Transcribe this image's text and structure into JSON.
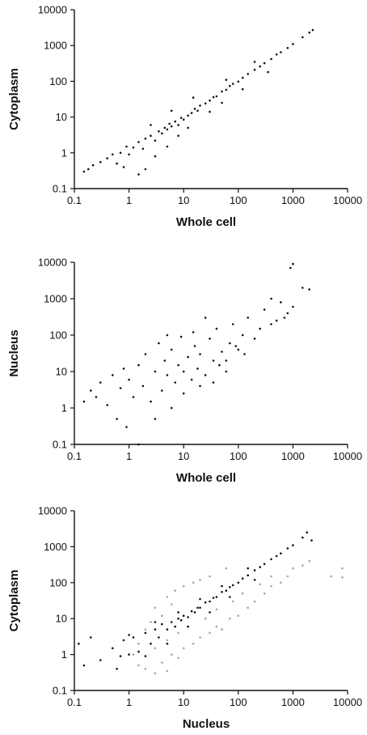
{
  "chart_data": [
    {
      "type": "scatter",
      "x_scale": "log",
      "y_scale": "log",
      "xlabel": "Whole cell",
      "ylabel": "Cytoplasm",
      "xlim": [
        0.1,
        10000
      ],
      "ylim": [
        0.1,
        10000
      ],
      "x_tick_labels": [
        "0.1",
        "1",
        "10",
        "100",
        "1000",
        "10000"
      ],
      "y_tick_labels": [
        "0.1",
        "1",
        "10",
        "100",
        "1000",
        "10000"
      ],
      "grid": false,
      "series": [
        {
          "color": "#111111",
          "points": [
            [
              0.15,
              0.3
            ],
            [
              0.18,
              0.35
            ],
            [
              0.22,
              0.45
            ],
            [
              0.3,
              0.55
            ],
            [
              0.4,
              0.7
            ],
            [
              0.5,
              0.9
            ],
            [
              0.6,
              0.5
            ],
            [
              0.7,
              1.0
            ],
            [
              0.8,
              0.4
            ],
            [
              0.9,
              1.5
            ],
            [
              1.0,
              0.9
            ],
            [
              1.2,
              1.4
            ],
            [
              1.5,
              2.0
            ],
            [
              1.8,
              1.3
            ],
            [
              2.0,
              2.5
            ],
            [
              2.5,
              3.0
            ],
            [
              3.0,
              2.2
            ],
            [
              3.5,
              4.0
            ],
            [
              4.0,
              3.5
            ],
            [
              4.5,
              5.0
            ],
            [
              5.0,
              4.5
            ],
            [
              5.5,
              6.5
            ],
            [
              6.0,
              5.5
            ],
            [
              7.0,
              7.5
            ],
            [
              8.0,
              6.0
            ],
            [
              9.0,
              9.5
            ],
            [
              10,
              8.5
            ],
            [
              12,
              11
            ],
            [
              14,
              13
            ],
            [
              16,
              17
            ],
            [
              18,
              15
            ],
            [
              20,
              21
            ],
            [
              25,
              24
            ],
            [
              30,
              29
            ],
            [
              35,
              36
            ],
            [
              40,
              38
            ],
            [
              50,
              52
            ],
            [
              60,
              58
            ],
            [
              70,
              74
            ],
            [
              80,
              85
            ],
            [
              100,
              98
            ],
            [
              120,
              125
            ],
            [
              150,
              160
            ],
            [
              200,
              210
            ],
            [
              250,
              260
            ],
            [
              300,
              320
            ],
            [
              400,
              420
            ],
            [
              500,
              560
            ],
            [
              600,
              650
            ],
            [
              800,
              850
            ],
            [
              1000,
              1100
            ],
            [
              1500,
              1700
            ],
            [
              2000,
              2300
            ],
            [
              2300,
              2700
            ],
            [
              1.5,
              0.25
            ],
            [
              2.0,
              0.35
            ],
            [
              3.0,
              0.8
            ],
            [
              2.5,
              6.0
            ],
            [
              5.0,
              1.5
            ],
            [
              8.0,
              3.0
            ],
            [
              12,
              5.0
            ],
            [
              6.0,
              15
            ],
            [
              15,
              35
            ],
            [
              30,
              14
            ],
            [
              50,
              25
            ],
            [
              60,
              110
            ],
            [
              120,
              60
            ],
            [
              200,
              350
            ],
            [
              350,
              180
            ]
          ]
        }
      ]
    },
    {
      "type": "scatter",
      "x_scale": "log",
      "y_scale": "log",
      "xlabel": "Whole cell",
      "ylabel": "Nucleus",
      "xlim": [
        0.1,
        10000
      ],
      "ylim": [
        0.1,
        10000
      ],
      "x_tick_labels": [
        "0.1",
        "1",
        "10",
        "100",
        "1000",
        "10000"
      ],
      "y_tick_labels": [
        "0.1",
        "1",
        "10",
        "100",
        "1000",
        "10000"
      ],
      "grid": false,
      "series": [
        {
          "color": "#111111",
          "points": [
            [
              0.15,
              1.5
            ],
            [
              0.2,
              3.0
            ],
            [
              0.25,
              2.0
            ],
            [
              0.3,
              5.0
            ],
            [
              0.4,
              1.2
            ],
            [
              0.5,
              8.0
            ],
            [
              0.6,
              0.5
            ],
            [
              0.7,
              3.5
            ],
            [
              0.8,
              12
            ],
            [
              0.9,
              0.3
            ],
            [
              1.0,
              6.0
            ],
            [
              1.2,
              2.0
            ],
            [
              1.5,
              15
            ],
            [
              1.5,
              0.1
            ],
            [
              1.8,
              4.0
            ],
            [
              2.0,
              30
            ],
            [
              2.5,
              1.5
            ],
            [
              3.0,
              10
            ],
            [
              3.5,
              60
            ],
            [
              4.0,
              3.0
            ],
            [
              4.5,
              20
            ],
            [
              5.0,
              8.0
            ],
            [
              6.0,
              40
            ],
            [
              7.0,
              5.0
            ],
            [
              8.0,
              15
            ],
            [
              9.0,
              90
            ],
            [
              10,
              10
            ],
            [
              12,
              25
            ],
            [
              14,
              6.0
            ],
            [
              16,
              50
            ],
            [
              18,
              12
            ],
            [
              20,
              30
            ],
            [
              25,
              8.0
            ],
            [
              30,
              80
            ],
            [
              35,
              20
            ],
            [
              40,
              150
            ],
            [
              50,
              35
            ],
            [
              60,
              10
            ],
            [
              70,
              60
            ],
            [
              80,
              200
            ],
            [
              100,
              40
            ],
            [
              120,
              100
            ],
            [
              150,
              300
            ],
            [
              200,
              80
            ],
            [
              250,
              150
            ],
            [
              300,
              500
            ],
            [
              400,
              200
            ],
            [
              500,
              250
            ],
            [
              600,
              800
            ],
            [
              800,
              400
            ],
            [
              1000,
              600
            ],
            [
              1500,
              2000
            ],
            [
              2000,
              1800
            ],
            [
              900,
              7000
            ],
            [
              1000,
              9000
            ],
            [
              700,
              300
            ],
            [
              400,
              1000
            ],
            [
              3.0,
              0.5
            ],
            [
              6.0,
              1.0
            ],
            [
              10,
              2.5
            ],
            [
              20,
              4.0
            ],
            [
              5.0,
              100
            ],
            [
              15,
              120
            ],
            [
              25,
              300
            ],
            [
              45,
              15
            ],
            [
              90,
              50
            ],
            [
              130,
              30
            ],
            [
              35,
              5.0
            ],
            [
              60,
              20
            ]
          ]
        }
      ]
    },
    {
      "type": "scatter",
      "x_scale": "log",
      "y_scale": "log",
      "xlabel": "Nucleus",
      "ylabel": "Cytoplasm",
      "xlim": [
        0.1,
        10000
      ],
      "ylim": [
        0.1,
        10000
      ],
      "x_tick_labels": [
        "0.1",
        "1",
        "10",
        "100",
        "1000",
        "10000"
      ],
      "y_tick_labels": [
        "0.1",
        "1",
        "10",
        "100",
        "1000",
        "10000"
      ],
      "grid": false,
      "series": [
        {
          "color": "#a6a6a6",
          "points": [
            [
              1.5,
              0.5
            ],
            [
              2.0,
              0.4
            ],
            [
              3.0,
              0.3
            ],
            [
              4.0,
              0.6
            ],
            [
              5.0,
              0.35
            ],
            [
              6.0,
              1.0
            ],
            [
              8.0,
              0.8
            ],
            [
              10,
              1.5
            ],
            [
              15,
              2.0
            ],
            [
              20,
              3.0
            ],
            [
              30,
              4.0
            ],
            [
              40,
              6.0
            ],
            [
              50,
              5.0
            ],
            [
              70,
              10
            ],
            [
              100,
              12
            ],
            [
              150,
              20
            ],
            [
              200,
              30
            ],
            [
              300,
              50
            ],
            [
              400,
              80
            ],
            [
              600,
              100
            ],
            [
              800,
              150
            ],
            [
              1000,
              250
            ],
            [
              1500,
              300
            ],
            [
              2000,
              400
            ],
            [
              5000,
              150
            ],
            [
              8000,
              250
            ],
            [
              8000,
              140
            ],
            [
              3.0,
              20
            ],
            [
              5.0,
              40
            ],
            [
              7.0,
              60
            ],
            [
              10,
              80
            ],
            [
              15,
              100
            ],
            [
              20,
              120
            ],
            [
              30,
              150
            ],
            [
              60,
              250
            ],
            [
              2.0,
              5.0
            ],
            [
              2.5,
              8.0
            ],
            [
              4.0,
              12
            ],
            [
              6.0,
              25
            ],
            [
              1.2,
              1.0
            ],
            [
              1.5,
              2.0
            ],
            [
              3.0,
              1.5
            ],
            [
              5.0,
              2.5
            ],
            [
              8.0,
              4.0
            ],
            [
              12,
              6.0
            ],
            [
              25,
              10
            ],
            [
              40,
              18
            ],
            [
              80,
              30
            ],
            [
              120,
              50
            ],
            [
              250,
              90
            ],
            [
              400,
              150
            ]
          ]
        },
        {
          "color": "#111111",
          "points": [
            [
              0.12,
              2.0
            ],
            [
              0.2,
              3.0
            ],
            [
              0.3,
              0.7
            ],
            [
              0.5,
              1.5
            ],
            [
              0.7,
              0.9
            ],
            [
              0.8,
              2.5
            ],
            [
              1.0,
              1.0
            ],
            [
              1.2,
              3.0
            ],
            [
              1.5,
              1.2
            ],
            [
              2.0,
              4.0
            ],
            [
              2.5,
              2.0
            ],
            [
              3.0,
              5.0
            ],
            [
              3.5,
              3.0
            ],
            [
              4.0,
              7.0
            ],
            [
              5.0,
              5.0
            ],
            [
              6.0,
              8.0
            ],
            [
              7.0,
              6.0
            ],
            [
              8.0,
              10
            ],
            [
              9.0,
              9.0
            ],
            [
              10,
              12
            ],
            [
              12,
              11
            ],
            [
              14,
              16
            ],
            [
              16,
              15
            ],
            [
              18,
              20
            ],
            [
              20,
              20
            ],
            [
              25,
              28
            ],
            [
              30,
              30
            ],
            [
              35,
              38
            ],
            [
              40,
              40
            ],
            [
              50,
              55
            ],
            [
              60,
              60
            ],
            [
              70,
              75
            ],
            [
              80,
              85
            ],
            [
              100,
              100
            ],
            [
              120,
              130
            ],
            [
              150,
              160
            ],
            [
              200,
              220
            ],
            [
              250,
              270
            ],
            [
              300,
              330
            ],
            [
              400,
              450
            ],
            [
              500,
              550
            ],
            [
              600,
              650
            ],
            [
              800,
              900
            ],
            [
              1000,
              1100
            ],
            [
              1500,
              1800
            ],
            [
              1800,
              2500
            ],
            [
              2200,
              1500
            ],
            [
              0.15,
              0.5
            ],
            [
              0.6,
              0.4
            ],
            [
              1.0,
              3.5
            ],
            [
              2.0,
              0.9
            ],
            [
              3.0,
              8.0
            ],
            [
              5.0,
              2.0
            ],
            [
              8.0,
              15
            ],
            [
              12,
              6.0
            ],
            [
              20,
              35
            ],
            [
              30,
              15
            ],
            [
              50,
              80
            ],
            [
              70,
              40
            ],
            [
              150,
              250
            ],
            [
              200,
              120
            ]
          ]
        }
      ]
    }
  ]
}
